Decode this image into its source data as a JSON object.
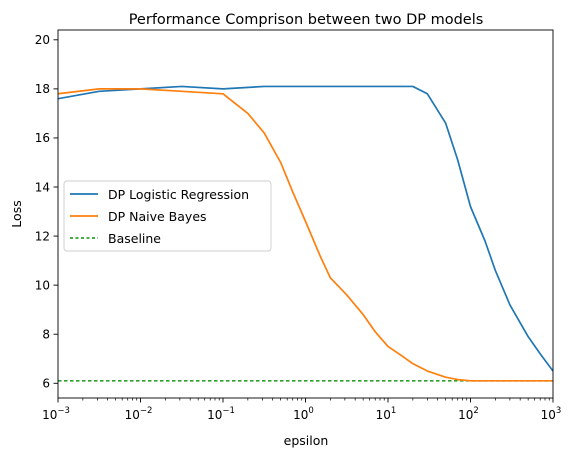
{
  "chart_data": {
    "type": "line",
    "title": "Performance Comprison between two DP models",
    "xlabel": "epsilon",
    "ylabel": "Loss",
    "xscale": "log",
    "xlim": [
      0.001,
      1000
    ],
    "ylim": [
      5.4,
      20.4
    ],
    "x_ticks": [
      0.001,
      0.01,
      0.1,
      1,
      10,
      100,
      1000
    ],
    "x_tick_labels": [
      {
        "base": "10",
        "exp": "−3"
      },
      {
        "base": "10",
        "exp": "−2"
      },
      {
        "base": "10",
        "exp": "−1"
      },
      {
        "base": "10",
        "exp": "0"
      },
      {
        "base": "10",
        "exp": "1"
      },
      {
        "base": "10",
        "exp": "2"
      },
      {
        "base": "10",
        "exp": "3"
      }
    ],
    "y_ticks": [
      6,
      8,
      10,
      12,
      14,
      16,
      18,
      20
    ],
    "y_tick_labels": [
      "6",
      "8",
      "10",
      "12",
      "14",
      "16",
      "18",
      "20"
    ],
    "grid": false,
    "legend_position": "center-left",
    "series": [
      {
        "name": "DP Logistic Regression",
        "color": "#1f77b4",
        "style": "solid",
        "x": [
          0.001,
          0.003162,
          0.01,
          0.03162,
          0.1,
          0.3162,
          1,
          2,
          3.162,
          5,
          10,
          15,
          20,
          30,
          50,
          70,
          100,
          150,
          200,
          300,
          500,
          700,
          1000
        ],
        "y": [
          17.6,
          17.9,
          18.0,
          18.1,
          18.0,
          18.1,
          18.1,
          18.1,
          18.1,
          18.1,
          18.1,
          18.1,
          18.1,
          17.8,
          16.6,
          15.1,
          13.2,
          11.8,
          10.6,
          9.2,
          7.9,
          7.2,
          6.5
        ]
      },
      {
        "name": "DP Naive Bayes",
        "color": "#ff7f0e",
        "style": "solid",
        "x": [
          0.001,
          0.003162,
          0.01,
          0.03162,
          0.1,
          0.2,
          0.3162,
          0.5,
          0.7,
          1,
          1.5,
          2,
          3.162,
          5,
          7,
          10,
          15,
          20,
          30,
          50,
          70,
          100,
          200,
          500,
          1000
        ],
        "y": [
          17.8,
          18.0,
          18.0,
          17.9,
          17.8,
          17.0,
          16.2,
          15.0,
          13.8,
          12.6,
          11.2,
          10.3,
          9.6,
          8.8,
          8.1,
          7.5,
          7.1,
          6.8,
          6.5,
          6.25,
          6.15,
          6.1,
          6.1,
          6.1,
          6.1
        ]
      },
      {
        "name": "Baseline",
        "color": "#2ca02c",
        "style": "dashed",
        "x": [
          0.001,
          1000
        ],
        "y": [
          6.1,
          6.1
        ]
      }
    ]
  }
}
